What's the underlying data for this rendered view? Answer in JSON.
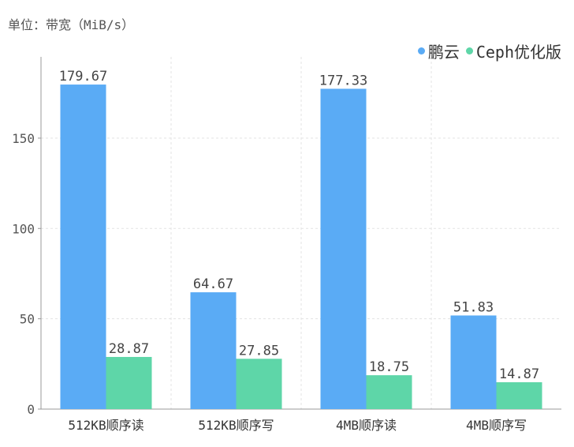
{
  "unit_label": "单位：带宽（MiB/s）",
  "legend": [
    {
      "label": "鹏云",
      "color": "#5aabf5"
    },
    {
      "label": "Ceph优化版",
      "color": "#5ed6a8"
    }
  ],
  "chart_data": {
    "type": "bar",
    "categories": [
      "512KB顺序读",
      "512KB顺序写",
      "4MB顺序读",
      "4MB顺序写"
    ],
    "series": [
      {
        "name": "鹏云",
        "values": [
          179.67,
          64.67,
          177.33,
          51.83
        ],
        "color": "#5aabf5",
        "labels": [
          "179.67",
          "64.67",
          "177.33",
          "51.83"
        ]
      },
      {
        "name": "Ceph优化版",
        "values": [
          28.87,
          27.85,
          18.75,
          14.87
        ],
        "color": "#5ed6a8",
        "labels": [
          "28.87",
          "27.85",
          "18.75",
          "14.87"
        ]
      }
    ],
    "ylim": [
      0,
      195
    ],
    "yticks": [
      0,
      50,
      100,
      150
    ],
    "grid": true,
    "legend_position": "top-right",
    "ylabel": "单位：带宽（MiB/s）"
  }
}
